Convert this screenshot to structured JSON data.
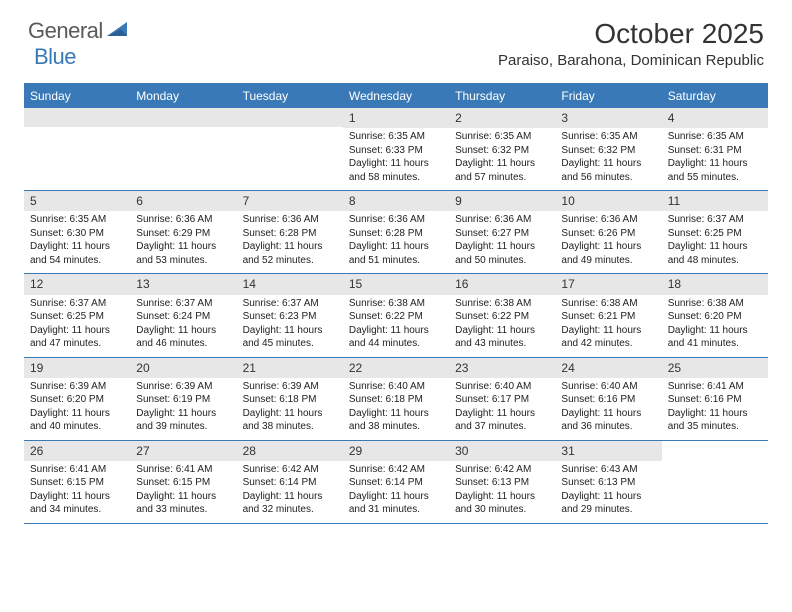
{
  "logo": {
    "general": "General",
    "blue": "Blue"
  },
  "title": "October 2025",
  "location": "Paraiso, Barahona, Dominican Republic",
  "header_color": "#3a79b7",
  "day_bar_color": "#e7e7e7",
  "text_color": "#222222",
  "day_names": [
    "Sunday",
    "Monday",
    "Tuesday",
    "Wednesday",
    "Thursday",
    "Friday",
    "Saturday"
  ],
  "weeks": [
    [
      {
        "n": "",
        "sr": "",
        "ss": "",
        "dl": ""
      },
      {
        "n": "",
        "sr": "",
        "ss": "",
        "dl": ""
      },
      {
        "n": "",
        "sr": "",
        "ss": "",
        "dl": ""
      },
      {
        "n": "1",
        "sr": "Sunrise: 6:35 AM",
        "ss": "Sunset: 6:33 PM",
        "dl": "Daylight: 11 hours and 58 minutes."
      },
      {
        "n": "2",
        "sr": "Sunrise: 6:35 AM",
        "ss": "Sunset: 6:32 PM",
        "dl": "Daylight: 11 hours and 57 minutes."
      },
      {
        "n": "3",
        "sr": "Sunrise: 6:35 AM",
        "ss": "Sunset: 6:32 PM",
        "dl": "Daylight: 11 hours and 56 minutes."
      },
      {
        "n": "4",
        "sr": "Sunrise: 6:35 AM",
        "ss": "Sunset: 6:31 PM",
        "dl": "Daylight: 11 hours and 55 minutes."
      }
    ],
    [
      {
        "n": "5",
        "sr": "Sunrise: 6:35 AM",
        "ss": "Sunset: 6:30 PM",
        "dl": "Daylight: 11 hours and 54 minutes."
      },
      {
        "n": "6",
        "sr": "Sunrise: 6:36 AM",
        "ss": "Sunset: 6:29 PM",
        "dl": "Daylight: 11 hours and 53 minutes."
      },
      {
        "n": "7",
        "sr": "Sunrise: 6:36 AM",
        "ss": "Sunset: 6:28 PM",
        "dl": "Daylight: 11 hours and 52 minutes."
      },
      {
        "n": "8",
        "sr": "Sunrise: 6:36 AM",
        "ss": "Sunset: 6:28 PM",
        "dl": "Daylight: 11 hours and 51 minutes."
      },
      {
        "n": "9",
        "sr": "Sunrise: 6:36 AM",
        "ss": "Sunset: 6:27 PM",
        "dl": "Daylight: 11 hours and 50 minutes."
      },
      {
        "n": "10",
        "sr": "Sunrise: 6:36 AM",
        "ss": "Sunset: 6:26 PM",
        "dl": "Daylight: 11 hours and 49 minutes."
      },
      {
        "n": "11",
        "sr": "Sunrise: 6:37 AM",
        "ss": "Sunset: 6:25 PM",
        "dl": "Daylight: 11 hours and 48 minutes."
      }
    ],
    [
      {
        "n": "12",
        "sr": "Sunrise: 6:37 AM",
        "ss": "Sunset: 6:25 PM",
        "dl": "Daylight: 11 hours and 47 minutes."
      },
      {
        "n": "13",
        "sr": "Sunrise: 6:37 AM",
        "ss": "Sunset: 6:24 PM",
        "dl": "Daylight: 11 hours and 46 minutes."
      },
      {
        "n": "14",
        "sr": "Sunrise: 6:37 AM",
        "ss": "Sunset: 6:23 PM",
        "dl": "Daylight: 11 hours and 45 minutes."
      },
      {
        "n": "15",
        "sr": "Sunrise: 6:38 AM",
        "ss": "Sunset: 6:22 PM",
        "dl": "Daylight: 11 hours and 44 minutes."
      },
      {
        "n": "16",
        "sr": "Sunrise: 6:38 AM",
        "ss": "Sunset: 6:22 PM",
        "dl": "Daylight: 11 hours and 43 minutes."
      },
      {
        "n": "17",
        "sr": "Sunrise: 6:38 AM",
        "ss": "Sunset: 6:21 PM",
        "dl": "Daylight: 11 hours and 42 minutes."
      },
      {
        "n": "18",
        "sr": "Sunrise: 6:38 AM",
        "ss": "Sunset: 6:20 PM",
        "dl": "Daylight: 11 hours and 41 minutes."
      }
    ],
    [
      {
        "n": "19",
        "sr": "Sunrise: 6:39 AM",
        "ss": "Sunset: 6:20 PM",
        "dl": "Daylight: 11 hours and 40 minutes."
      },
      {
        "n": "20",
        "sr": "Sunrise: 6:39 AM",
        "ss": "Sunset: 6:19 PM",
        "dl": "Daylight: 11 hours and 39 minutes."
      },
      {
        "n": "21",
        "sr": "Sunrise: 6:39 AM",
        "ss": "Sunset: 6:18 PM",
        "dl": "Daylight: 11 hours and 38 minutes."
      },
      {
        "n": "22",
        "sr": "Sunrise: 6:40 AM",
        "ss": "Sunset: 6:18 PM",
        "dl": "Daylight: 11 hours and 38 minutes."
      },
      {
        "n": "23",
        "sr": "Sunrise: 6:40 AM",
        "ss": "Sunset: 6:17 PM",
        "dl": "Daylight: 11 hours and 37 minutes."
      },
      {
        "n": "24",
        "sr": "Sunrise: 6:40 AM",
        "ss": "Sunset: 6:16 PM",
        "dl": "Daylight: 11 hours and 36 minutes."
      },
      {
        "n": "25",
        "sr": "Sunrise: 6:41 AM",
        "ss": "Sunset: 6:16 PM",
        "dl": "Daylight: 11 hours and 35 minutes."
      }
    ],
    [
      {
        "n": "26",
        "sr": "Sunrise: 6:41 AM",
        "ss": "Sunset: 6:15 PM",
        "dl": "Daylight: 11 hours and 34 minutes."
      },
      {
        "n": "27",
        "sr": "Sunrise: 6:41 AM",
        "ss": "Sunset: 6:15 PM",
        "dl": "Daylight: 11 hours and 33 minutes."
      },
      {
        "n": "28",
        "sr": "Sunrise: 6:42 AM",
        "ss": "Sunset: 6:14 PM",
        "dl": "Daylight: 11 hours and 32 minutes."
      },
      {
        "n": "29",
        "sr": "Sunrise: 6:42 AM",
        "ss": "Sunset: 6:14 PM",
        "dl": "Daylight: 11 hours and 31 minutes."
      },
      {
        "n": "30",
        "sr": "Sunrise: 6:42 AM",
        "ss": "Sunset: 6:13 PM",
        "dl": "Daylight: 11 hours and 30 minutes."
      },
      {
        "n": "31",
        "sr": "Sunrise: 6:43 AM",
        "ss": "Sunset: 6:13 PM",
        "dl": "Daylight: 11 hours and 29 minutes."
      },
      {
        "n": "",
        "sr": "",
        "ss": "",
        "dl": ""
      }
    ]
  ]
}
